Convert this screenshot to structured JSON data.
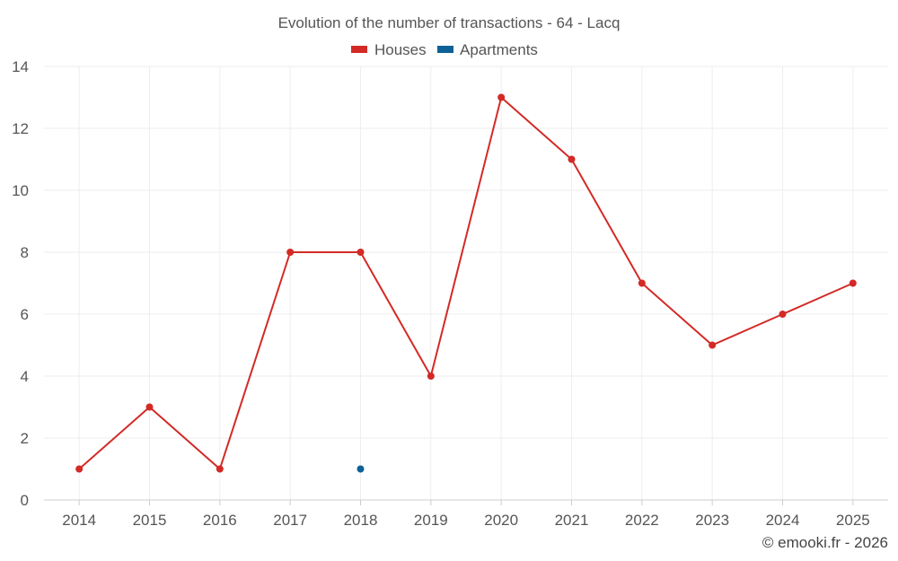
{
  "chart_data": {
    "type": "line",
    "title": "Evolution of the number of transactions - 64 - Lacq",
    "categories": [
      "2014",
      "2015",
      "2016",
      "2017",
      "2018",
      "2019",
      "2020",
      "2021",
      "2022",
      "2023",
      "2024",
      "2025"
    ],
    "series": [
      {
        "name": "Houses",
        "color": "#d32a26",
        "values": [
          1,
          3,
          1,
          8,
          8,
          4,
          13,
          11,
          7,
          5,
          6,
          7
        ]
      },
      {
        "name": "Apartments",
        "color": "#0d6196",
        "values": [
          null,
          null,
          null,
          null,
          1,
          null,
          null,
          null,
          null,
          null,
          null,
          null
        ]
      }
    ],
    "ylim": [
      0,
      14
    ],
    "yticks": [
      0,
      2,
      4,
      6,
      8,
      10,
      12,
      14
    ],
    "xlabel": "",
    "ylabel": "",
    "grid": true,
    "legend": "top-center"
  },
  "footer": {
    "credit": "© emooki.fr - 2026"
  }
}
